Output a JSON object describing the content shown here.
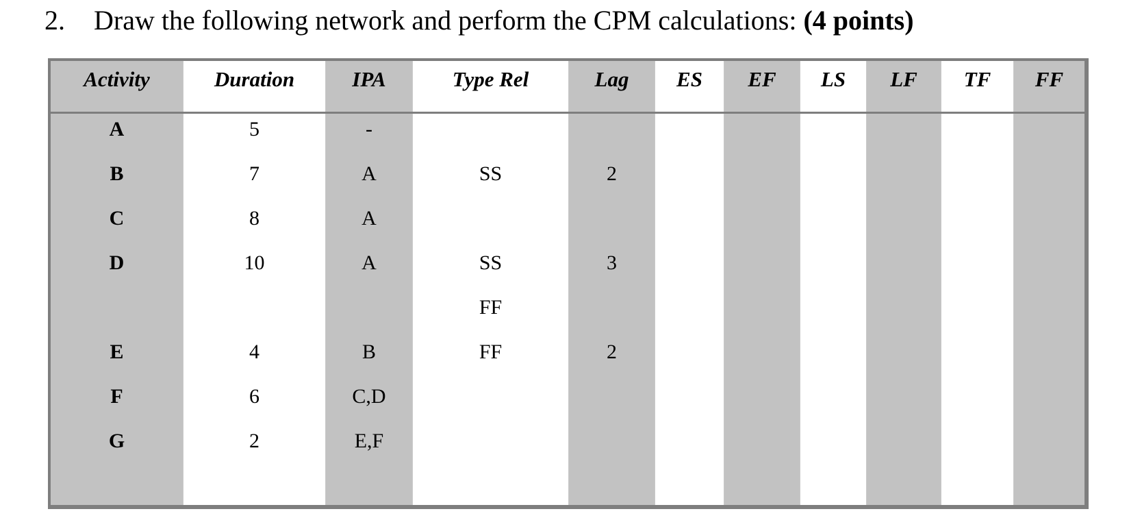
{
  "title": {
    "number": "2.",
    "text": "Draw the following network and perform the CPM calculations:",
    "points": "(4 points)"
  },
  "table": {
    "headers": [
      "Activity",
      "Duration",
      "IPA",
      "Type Rel",
      "Lag",
      "ES",
      "EF",
      "LS",
      "LF",
      "TF",
      "FF"
    ],
    "rows": [
      [
        "A",
        "5",
        "-",
        "",
        "",
        "",
        "",
        "",
        "",
        "",
        ""
      ],
      [
        "B",
        "7",
        "A",
        "SS",
        "2",
        "",
        "",
        "",
        "",
        "",
        ""
      ],
      [
        "C",
        "8",
        "A",
        "",
        "",
        "",
        "",
        "",
        "",
        "",
        ""
      ],
      [
        "D",
        "10",
        "A",
        "SS",
        "3",
        "",
        "",
        "",
        "",
        "",
        ""
      ],
      [
        "",
        "",
        "",
        "FF",
        "",
        "",
        "",
        "",
        "",
        "",
        ""
      ],
      [
        "E",
        "4",
        "B",
        "FF",
        "2",
        "",
        "",
        "",
        "",
        "",
        ""
      ],
      [
        "F",
        "6",
        "C,D",
        "",
        "",
        "",
        "",
        "",
        "",
        "",
        ""
      ],
      [
        "G",
        "2",
        "E,F",
        "",
        "",
        "",
        "",
        "",
        "",
        "",
        ""
      ]
    ],
    "shade_color": "#c2c2c2",
    "border_color": "#7e7e7e"
  }
}
